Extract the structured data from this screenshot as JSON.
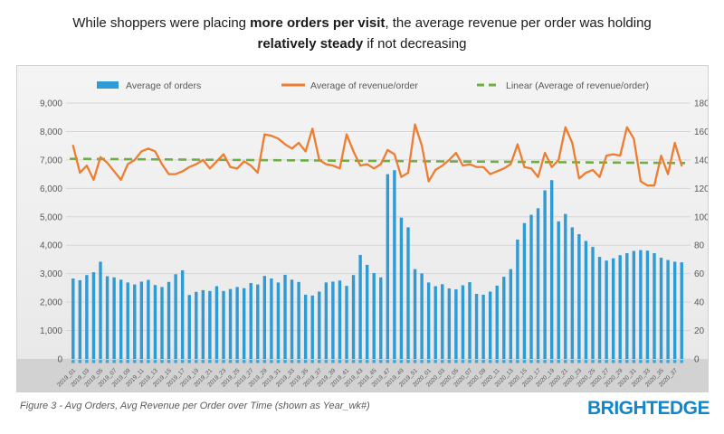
{
  "title": {
    "segments": [
      {
        "t": "While shoppers were placing ",
        "b": false
      },
      {
        "t": "more orders per visit",
        "b": true
      },
      {
        "t": ", the average revenue per order was holding ",
        "b": false
      },
      {
        "t": "relatively steady",
        "b": true
      },
      {
        "t": " if not decreasing",
        "b": false
      }
    ]
  },
  "caption": "Figure 3 - Avg Orders, Avg Revenue per Order over Time (shown as Year_wk#)",
  "logo_text": "BRIGHTEDGE",
  "colors": {
    "bars": "#2E9BD5",
    "line": "#ED7D31",
    "trend": "#70AD47",
    "axis_text": "#595959",
    "grid": "#d6d6d6",
    "band": "#d2d2d2",
    "logo": "#1386C9"
  },
  "chart_data": {
    "type": "bar",
    "title": "",
    "xlabel": "",
    "ylabel": "",
    "grid": true,
    "legend_position": "top",
    "legend": [
      {
        "label": "Average of orders",
        "swatch": "rect",
        "color": "#2E9BD5"
      },
      {
        "label": "Average of revenue/order",
        "swatch": "line",
        "color": "#ED7D31"
      },
      {
        "label": "Linear (Average of revenue/order)",
        "swatch": "dash",
        "color": "#70AD47"
      }
    ],
    "left_axis": {
      "min": 0,
      "max": 9000,
      "step": 1000,
      "tick_labels": [
        "0",
        "1,000",
        "2,000",
        "3,000",
        "4,000",
        "5,000",
        "6,000",
        "7,000",
        "8,000",
        "9,000"
      ]
    },
    "right_axis": {
      "min": 0,
      "max": 180,
      "step": 20,
      "tick_labels": [
        "0",
        "20",
        "40",
        "60",
        "80",
        "100",
        "120",
        "140",
        "160",
        "180"
      ]
    },
    "x_tick_every": 2,
    "categories": [
      "2019_01",
      "2019_02",
      "2019_03",
      "2019_04",
      "2019_05",
      "2019_06",
      "2019_07",
      "2019_08",
      "2019_09",
      "2019_10",
      "2019_11",
      "2019_12",
      "2019_13",
      "2019_14",
      "2019_15",
      "2019_16",
      "2019_17",
      "2019_18",
      "2019_19",
      "2019_20",
      "2019_21",
      "2019_22",
      "2019_23",
      "2019_24",
      "2019_25",
      "2019_26",
      "2019_27",
      "2019_28",
      "2019_29",
      "2019_30",
      "2019_31",
      "2019_32",
      "2019_33",
      "2019_34",
      "2019_35",
      "2019_36",
      "2019_37",
      "2019_38",
      "2019_39",
      "2019_40",
      "2019_41",
      "2019_42",
      "2019_43",
      "2019_44",
      "2019_45",
      "2019_46",
      "2019_47",
      "2019_48",
      "2019_49",
      "2019_50",
      "2019_51",
      "2019_52",
      "2020_01",
      "2020_02",
      "2020_03",
      "2020_04",
      "2020_05",
      "2020_06",
      "2020_07",
      "2020_08",
      "2020_09",
      "2020_10",
      "2020_11",
      "2020_12",
      "2020_13",
      "2020_14",
      "2020_15",
      "2020_16",
      "2020_17",
      "2020_18",
      "2020_19",
      "2020_20",
      "2020_21",
      "2020_22",
      "2020_23",
      "2020_24",
      "2020_25",
      "2020_26",
      "2020_27",
      "2020_28",
      "2020_29",
      "2020_30",
      "2020_31",
      "2020_32",
      "2020_33",
      "2020_34",
      "2020_35",
      "2020_36",
      "2020_37",
      "2020_38"
    ],
    "series": [
      {
        "name": "Average of orders",
        "type": "bar",
        "axis": "left",
        "values": [
          2830,
          2770,
          2950,
          3050,
          3420,
          2910,
          2870,
          2790,
          2690,
          2620,
          2720,
          2780,
          2600,
          2530,
          2710,
          2980,
          3120,
          2250,
          2360,
          2420,
          2390,
          2560,
          2390,
          2460,
          2530,
          2490,
          2670,
          2620,
          2920,
          2830,
          2690,
          2960,
          2790,
          2710,
          2260,
          2230,
          2370,
          2690,
          2720,
          2760,
          2570,
          2950,
          3660,
          3310,
          3020,
          2870,
          6500,
          6640,
          4970,
          4630,
          3160,
          3010,
          2690,
          2560,
          2630,
          2480,
          2450,
          2590,
          2700,
          2290,
          2260,
          2370,
          2580,
          2890,
          3160,
          4200,
          4780,
          5070,
          5300,
          5930,
          6290,
          4840,
          5100,
          4630,
          4390,
          4150,
          3940,
          3590,
          3460,
          3540,
          3650,
          3720,
          3800,
          3830,
          3810,
          3720,
          3560,
          3480,
          3420,
          3400
        ]
      },
      {
        "name": "Average of revenue/order",
        "type": "line",
        "axis": "right",
        "values": [
          150,
          131,
          136,
          126,
          142,
          138,
          132,
          126,
          137,
          140,
          146,
          148,
          146,
          137,
          130,
          130,
          132,
          135,
          137,
          140,
          134,
          139,
          144,
          135,
          134,
          139,
          136,
          131,
          158,
          157,
          155,
          151,
          148,
          152,
          146,
          162,
          140,
          137,
          136,
          134,
          158,
          146,
          136,
          137,
          134,
          137,
          147,
          144,
          128,
          131,
          165,
          150,
          125,
          133,
          136,
          140,
          145,
          136,
          137,
          135,
          135,
          130,
          132,
          134,
          137,
          151,
          135,
          134,
          128,
          145,
          135,
          140,
          163,
          152,
          127,
          131,
          133,
          128,
          143,
          144,
          143,
          163,
          155,
          125,
          122,
          122,
          143,
          130,
          152,
          136
        ]
      },
      {
        "name": "Linear (Average of revenue/order)",
        "type": "trend",
        "axis": "right",
        "values": [
          140.8,
          137.8
        ]
      }
    ]
  }
}
